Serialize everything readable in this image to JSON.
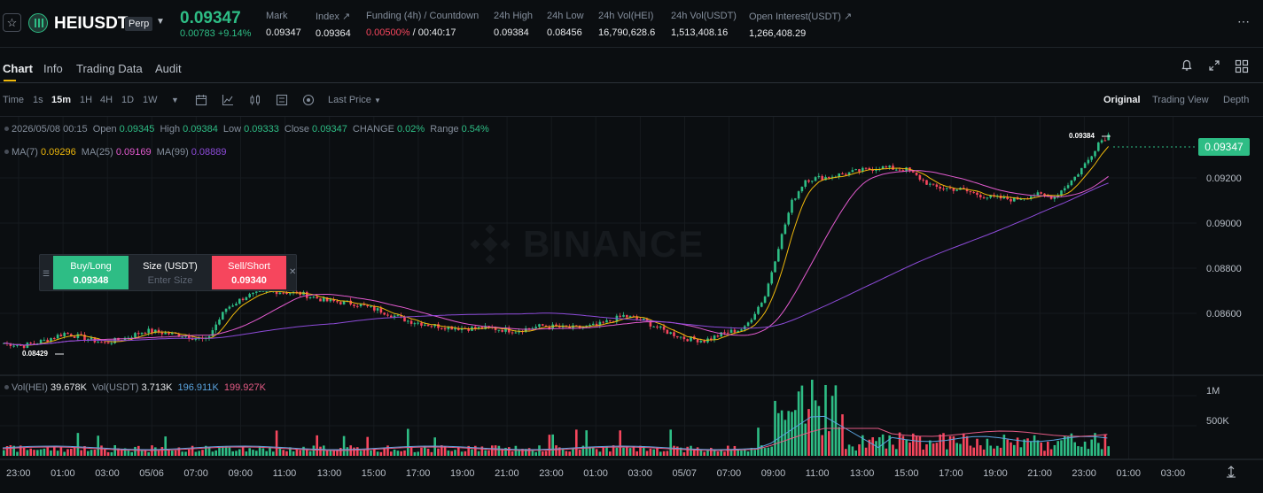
{
  "header": {
    "symbol": "HEIUSDT",
    "contract_type": "Perp",
    "last_price": "0.09347",
    "price_change": "0.00783 +9.14%",
    "stats": [
      {
        "label": "Mark",
        "value": "0.09347"
      },
      {
        "label": "Index ↗",
        "value": "0.09364"
      },
      {
        "label": "Funding (4h) / Countdown",
        "value_red": "0.00500%",
        "value_rest": " / 00:40:17"
      },
      {
        "label": "24h High",
        "value": "0.09384"
      },
      {
        "label": "24h Low",
        "value": "0.08456"
      },
      {
        "label": "24h Vol(HEI)",
        "value": "16,790,628.6"
      },
      {
        "label": "24h Vol(USDT)",
        "value": "1,513,408.16"
      },
      {
        "label": "Open Interest(USDT) ↗",
        "value": "1,266,408.29"
      }
    ],
    "accent_color": "#2ebd85",
    "down_color": "#f6465d"
  },
  "tabs": [
    "Chart",
    "Info",
    "Trading Data",
    "Audit"
  ],
  "toolbar": {
    "time_label": "Time",
    "timeframes": [
      "1s",
      "15m",
      "1H",
      "4H",
      "1D",
      "1W"
    ],
    "active_timeframe": "15m",
    "price_type": "Last Price",
    "views": [
      "Original",
      "Trading View",
      "Depth"
    ],
    "active_view": "Original"
  },
  "legend": {
    "ohlc": {
      "time": "2026/05/08 00:15",
      "open_label": "Open",
      "open": "0.09345",
      "high_label": "High",
      "high": "0.09384",
      "low_label": "Low",
      "low": "0.09333",
      "close_label": "Close",
      "close": "0.09347",
      "change_label": "CHANGE",
      "change": "0.02%",
      "range_label": "Range",
      "range": "0.54%"
    },
    "ma": [
      {
        "label": "MA(7)",
        "value": "0.09296",
        "color": "#f0b90b"
      },
      {
        "label": "MA(25)",
        "value": "0.09169",
        "color": "#e45bd0"
      },
      {
        "label": "MA(99)",
        "value": "0.08889",
        "color": "#8d4bd9"
      }
    ],
    "vol": {
      "hei_label": "Vol(HEI)",
      "hei": "39.678K",
      "usdt_label": "Vol(USDT)",
      "usdt": "3.713K",
      "ma1": "196.911K",
      "ma2": "199.927K"
    }
  },
  "order_widget": {
    "buy_label": "Buy/Long",
    "buy_price": "0.09348",
    "size_label": "Size (USDT)",
    "size_placeholder": "Enter Size",
    "sell_label": "Sell/Short",
    "sell_price": "0.09340"
  },
  "watermark": "BINANCE",
  "chart_data": {
    "type": "candlestick",
    "interval": "15m",
    "price_axis": [
      "0.09200",
      "0.09000",
      "0.08800",
      "0.08600"
    ],
    "current_price": "0.09347",
    "max_label": "0.09384",
    "min_label": "0.08429",
    "ylim": [
      0.0838,
      0.0942
    ],
    "volume_axis": [
      "1M",
      "500K"
    ],
    "time_axis": [
      "23:00",
      "01:00",
      "03:00",
      "05/06",
      "07:00",
      "09:00",
      "11:00",
      "13:00",
      "15:00",
      "17:00",
      "19:00",
      "21:00",
      "23:00",
      "01:00",
      "03:00",
      "05/07",
      "07:00",
      "09:00",
      "11:00",
      "13:00",
      "15:00",
      "17:00",
      "19:00",
      "21:00",
      "23:00",
      "01:00",
      "03:00"
    ],
    "close_path": [
      [
        0,
        0.0851
      ],
      [
        6,
        0.085
      ],
      [
        12,
        0.0852
      ],
      [
        18,
        0.0855
      ],
      [
        24,
        0.0853
      ],
      [
        30,
        0.0851
      ],
      [
        36,
        0.0853
      ],
      [
        42,
        0.0856
      ],
      [
        48,
        0.0855
      ],
      [
        54,
        0.0854
      ],
      [
        60,
        0.0852
      ],
      [
        66,
        0.0865
      ],
      [
        72,
        0.087
      ],
      [
        80,
        0.0872
      ],
      [
        88,
        0.0871
      ],
      [
        96,
        0.0868
      ],
      [
        104,
        0.0867
      ],
      [
        112,
        0.0864
      ],
      [
        120,
        0.086
      ],
      [
        128,
        0.0858
      ],
      [
        136,
        0.0857
      ],
      [
        144,
        0.0857
      ],
      [
        152,
        0.0856
      ],
      [
        160,
        0.0858
      ],
      [
        168,
        0.0857
      ],
      [
        176,
        0.0858
      ],
      [
        184,
        0.0862
      ],
      [
        190,
        0.086
      ],
      [
        196,
        0.0856
      ],
      [
        202,
        0.0853
      ],
      [
        208,
        0.0852
      ],
      [
        214,
        0.0855
      ],
      [
        220,
        0.0857
      ],
      [
        226,
        0.087
      ],
      [
        230,
        0.089
      ],
      [
        234,
        0.0908
      ],
      [
        238,
        0.0917
      ],
      [
        244,
        0.0918
      ],
      [
        252,
        0.092
      ],
      [
        260,
        0.0922
      ],
      [
        268,
        0.0921
      ],
      [
        276,
        0.0914
      ],
      [
        284,
        0.0913
      ],
      [
        292,
        0.091
      ],
      [
        300,
        0.0909
      ],
      [
        306,
        0.0911
      ],
      [
        312,
        0.091
      ],
      [
        318,
        0.0918
      ],
      [
        322,
        0.0925
      ],
      [
        325,
        0.0932
      ],
      [
        328,
        0.0935
      ]
    ]
  }
}
